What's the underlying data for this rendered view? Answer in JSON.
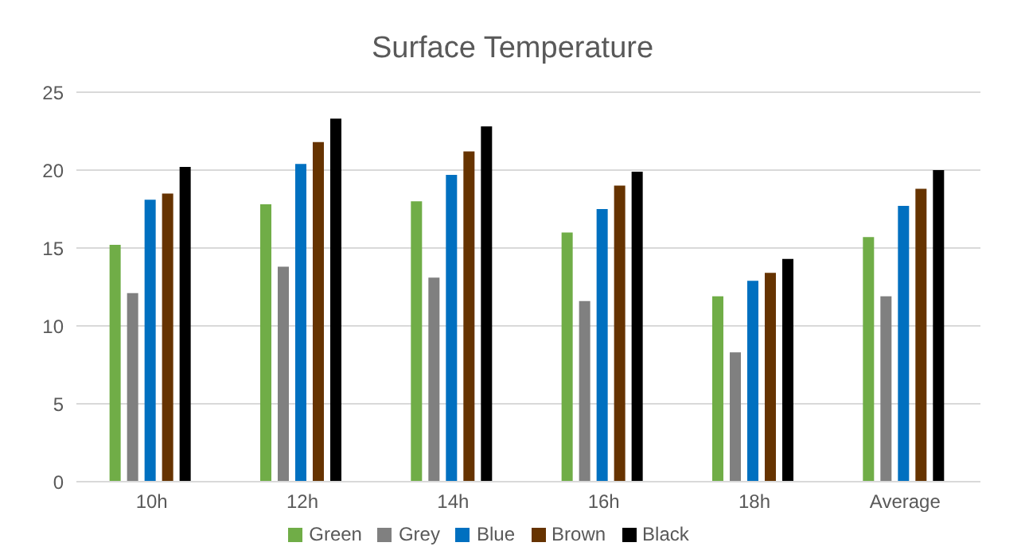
{
  "chart_data": {
    "type": "bar",
    "title": "Surface Temperature",
    "categories": [
      "10h",
      "12h",
      "14h",
      "16h",
      "18h",
      "Average"
    ],
    "series": [
      {
        "name": "Green",
        "color": "#70ad47",
        "values": [
          15.2,
          17.8,
          18.0,
          16.0,
          11.9,
          15.7
        ]
      },
      {
        "name": "Grey",
        "color": "#808080",
        "values": [
          12.1,
          13.8,
          13.1,
          11.6,
          8.3,
          11.9
        ]
      },
      {
        "name": "Blue",
        "color": "#0070c0",
        "values": [
          18.1,
          20.4,
          19.7,
          17.5,
          12.9,
          17.7
        ]
      },
      {
        "name": "Brown",
        "color": "#663300",
        "values": [
          18.5,
          21.8,
          21.2,
          19.0,
          13.4,
          18.8
        ]
      },
      {
        "name": "Black",
        "color": "#000000",
        "values": [
          20.2,
          23.3,
          22.8,
          19.9,
          14.3,
          20.0
        ]
      }
    ],
    "ylim": [
      0,
      25
    ],
    "yticks": [
      0,
      5,
      10,
      15,
      20,
      25
    ],
    "grid": "y",
    "legend": "bottom"
  }
}
